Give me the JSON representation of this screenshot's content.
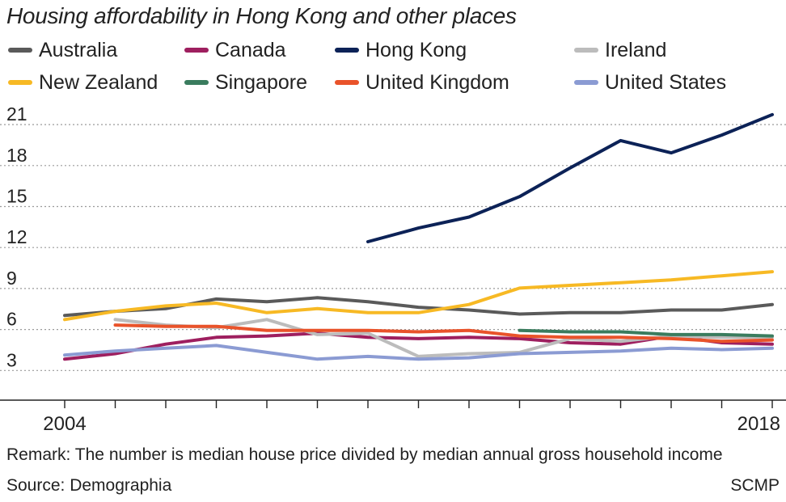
{
  "chart_data": {
    "type": "line",
    "title": "Housing affordability in Hong Kong and other places",
    "x": [
      2004,
      2005,
      2006,
      2007,
      2008,
      2009,
      2010,
      2011,
      2012,
      2013,
      2014,
      2015,
      2016,
      2017,
      2018
    ],
    "x_tick_labels": [
      "2004",
      "2018"
    ],
    "y_ticks": [
      3,
      6,
      9,
      12,
      15,
      18,
      21
    ],
    "ylim": [
      0,
      22
    ],
    "grid": "horizontal dotted",
    "legend_position": "top",
    "series": [
      {
        "name": "Australia",
        "color": "#5a5a5a",
        "values": [
          6.2,
          6.5,
          6.7,
          7.4,
          7.2,
          7.5,
          7.2,
          6.8,
          6.6,
          6.3,
          6.4,
          6.4,
          6.6,
          6.6,
          7.0
        ]
      },
      {
        "name": "Canada",
        "color": "#9e1f5f",
        "values": [
          3.0,
          3.4,
          4.1,
          4.6,
          4.7,
          4.9,
          4.6,
          4.5,
          4.6,
          4.5,
          4.2,
          4.1,
          4.7,
          4.2,
          4.1
        ]
      },
      {
        "name": "Hong Kong",
        "color": "#0c2257",
        "values": [
          null,
          null,
          null,
          null,
          null,
          null,
          11.6,
          12.6,
          13.4,
          14.9,
          17.0,
          19.0,
          18.1,
          19.4,
          20.9
        ]
      },
      {
        "name": "Ireland",
        "color": "#bcbcbc",
        "values": [
          null,
          5.9,
          5.5,
          5.3,
          5.9,
          4.8,
          4.9,
          3.2,
          3.4,
          3.5,
          4.5,
          4.3,
          4.7,
          4.6,
          4.6
        ]
      },
      {
        "name": "New Zealand",
        "color": "#f7b924",
        "values": [
          5.9,
          6.5,
          6.9,
          7.1,
          6.4,
          6.7,
          6.4,
          6.4,
          7.0,
          8.2,
          8.4,
          8.6,
          8.8,
          9.1,
          9.4
        ]
      },
      {
        "name": "Singapore",
        "color": "#3a7c5e",
        "values": [
          null,
          null,
          null,
          null,
          null,
          null,
          null,
          null,
          null,
          5.1,
          5.0,
          5.0,
          4.8,
          4.8,
          4.7
        ]
      },
      {
        "name": "United Kingdom",
        "color": "#e9532a",
        "values": [
          null,
          5.5,
          5.4,
          5.4,
          5.1,
          5.1,
          5.1,
          5.0,
          5.1,
          4.7,
          4.6,
          4.6,
          4.5,
          4.3,
          4.4
        ]
      },
      {
        "name": "United States",
        "color": "#8b9bd3",
        "values": [
          3.3,
          3.6,
          3.8,
          4.0,
          3.5,
          3.0,
          3.2,
          3.0,
          3.1,
          3.4,
          3.5,
          3.6,
          3.8,
          3.7,
          3.8
        ]
      }
    ],
    "remark": "Remark: The number is median house price divided by median annual gross household income",
    "source": "Source: Demographia",
    "credit": "SCMP"
  }
}
